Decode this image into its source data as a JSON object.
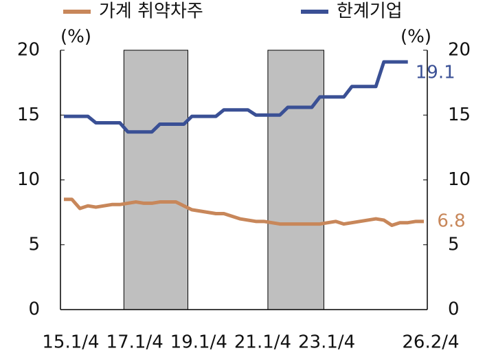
{
  "chart_data": {
    "type": "line",
    "categories": [
      "15.1/4",
      null,
      null,
      null,
      null,
      null,
      null,
      null,
      "17.1/4",
      null,
      null,
      null,
      null,
      null,
      null,
      null,
      "19.1/4",
      null,
      null,
      null,
      null,
      null,
      null,
      null,
      "21.1/4",
      null,
      null,
      null,
      null,
      null,
      null,
      null,
      "23.1/4",
      null,
      null,
      null,
      null,
      null,
      null,
      null,
      null,
      null,
      null,
      null,
      null,
      "26.2/4"
    ],
    "series": [
      {
        "name": "가계 취약차주",
        "color": "#c8875a",
        "axis": "y",
        "values": [
          8.5,
          8.5,
          7.8,
          8.0,
          7.9,
          8.0,
          8.1,
          8.1,
          8.2,
          8.3,
          8.2,
          8.2,
          8.3,
          8.3,
          8.3,
          8.0,
          7.7,
          7.6,
          7.5,
          7.4,
          7.4,
          7.2,
          7.0,
          6.9,
          6.8,
          6.8,
          6.7,
          6.6,
          6.6,
          6.6,
          6.6,
          6.6,
          6.6,
          6.7,
          6.8,
          6.6,
          6.7,
          6.8,
          6.9,
          7.0,
          6.9,
          6.5,
          6.7,
          6.7,
          6.8,
          6.8
        ]
      },
      {
        "name": "한계기업",
        "color": "#3a5095",
        "axis": "y2",
        "values": [
          14.9,
          14.9,
          14.9,
          14.9,
          14.4,
          14.4,
          14.4,
          14.4,
          13.7,
          13.7,
          13.7,
          13.7,
          14.3,
          14.3,
          14.3,
          14.3,
          14.9,
          14.9,
          14.9,
          14.9,
          15.4,
          15.4,
          15.4,
          15.4,
          15.0,
          15.0,
          15.0,
          15.0,
          15.6,
          15.6,
          15.6,
          15.6,
          16.4,
          16.4,
          16.4,
          16.4,
          17.2,
          17.2,
          17.2,
          17.2,
          19.1,
          19.1,
          19.1,
          19.1,
          null,
          null
        ]
      }
    ],
    "y_unit": "(%)",
    "y2_unit": "(%)",
    "ylim": [
      0,
      20
    ],
    "yticks": [
      0,
      5,
      10,
      15,
      20
    ],
    "y2lim": [
      0,
      20
    ],
    "y2ticks": [
      0,
      5,
      10,
      15,
      20
    ],
    "shaded_spans": [
      [
        8,
        16
      ],
      [
        26,
        33
      ]
    ]
  }
}
